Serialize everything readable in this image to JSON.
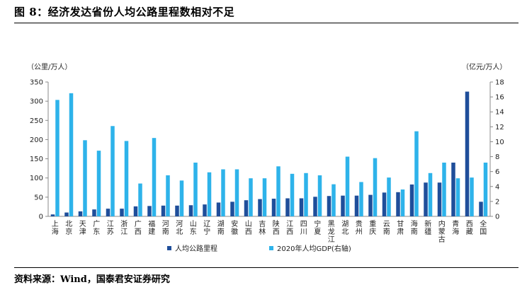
{
  "header": {
    "title": "图 8：经济发达省份人均公路里程数相对不足"
  },
  "footer": {
    "source": "资料来源：Wind，国泰君安证券研究"
  },
  "colors": {
    "series1": "#1F4E9A",
    "series2": "#2EB3EA",
    "axis": "#888888"
  },
  "chart_data": {
    "type": "bar",
    "y_left_unit": "（公里/万人）",
    "y_right_unit": "（亿元/万人）",
    "ylim_left": [
      0,
      350
    ],
    "ylim_right": [
      0,
      18
    ],
    "y_left_ticks": [
      0,
      50,
      100,
      150,
      200,
      250,
      300,
      350
    ],
    "y_right_ticks": [
      0,
      2,
      4,
      6,
      8,
      10,
      12,
      14,
      16,
      18
    ],
    "grid": false,
    "legend_position": "bottom",
    "categories": [
      "上海",
      "北京",
      "天津",
      "广东",
      "江苏",
      "浙江",
      "广西",
      "福建",
      "河南",
      "河北",
      "山东",
      "辽宁",
      "湖南",
      "安徽",
      "山西",
      "吉林",
      "陕西",
      "江西",
      "四川",
      "宁夏",
      "黑龙江",
      "湖北",
      "贵州",
      "重庆",
      "云南",
      "甘肃",
      "海南",
      "新疆",
      "内蒙古",
      "青海",
      "西藏",
      "全国"
    ],
    "series": [
      {
        "name": "人均公路里程",
        "axis": "left",
        "values": [
          5,
          10,
          13,
          18,
          20,
          20,
          26,
          27,
          28,
          28,
          29,
          31,
          36,
          38,
          42,
          45,
          46,
          47,
          47,
          51,
          53,
          54,
          54,
          56,
          62,
          63,
          83,
          88,
          88,
          140,
          325,
          38
        ]
      },
      {
        "name": "2020年人均GDP(右轴)",
        "axis": "right",
        "values": [
          15.6,
          16.5,
          10.2,
          8.8,
          12.1,
          10.1,
          4.4,
          10.5,
          5.5,
          4.8,
          7.2,
          5.9,
          6.3,
          6.3,
          5.1,
          5.1,
          6.7,
          5.7,
          5.8,
          5.5,
          4.3,
          8.0,
          4.6,
          7.8,
          5.2,
          3.6,
          11.4,
          5.8,
          7.2,
          5.1,
          5.2,
          7.2
        ]
      }
    ]
  }
}
